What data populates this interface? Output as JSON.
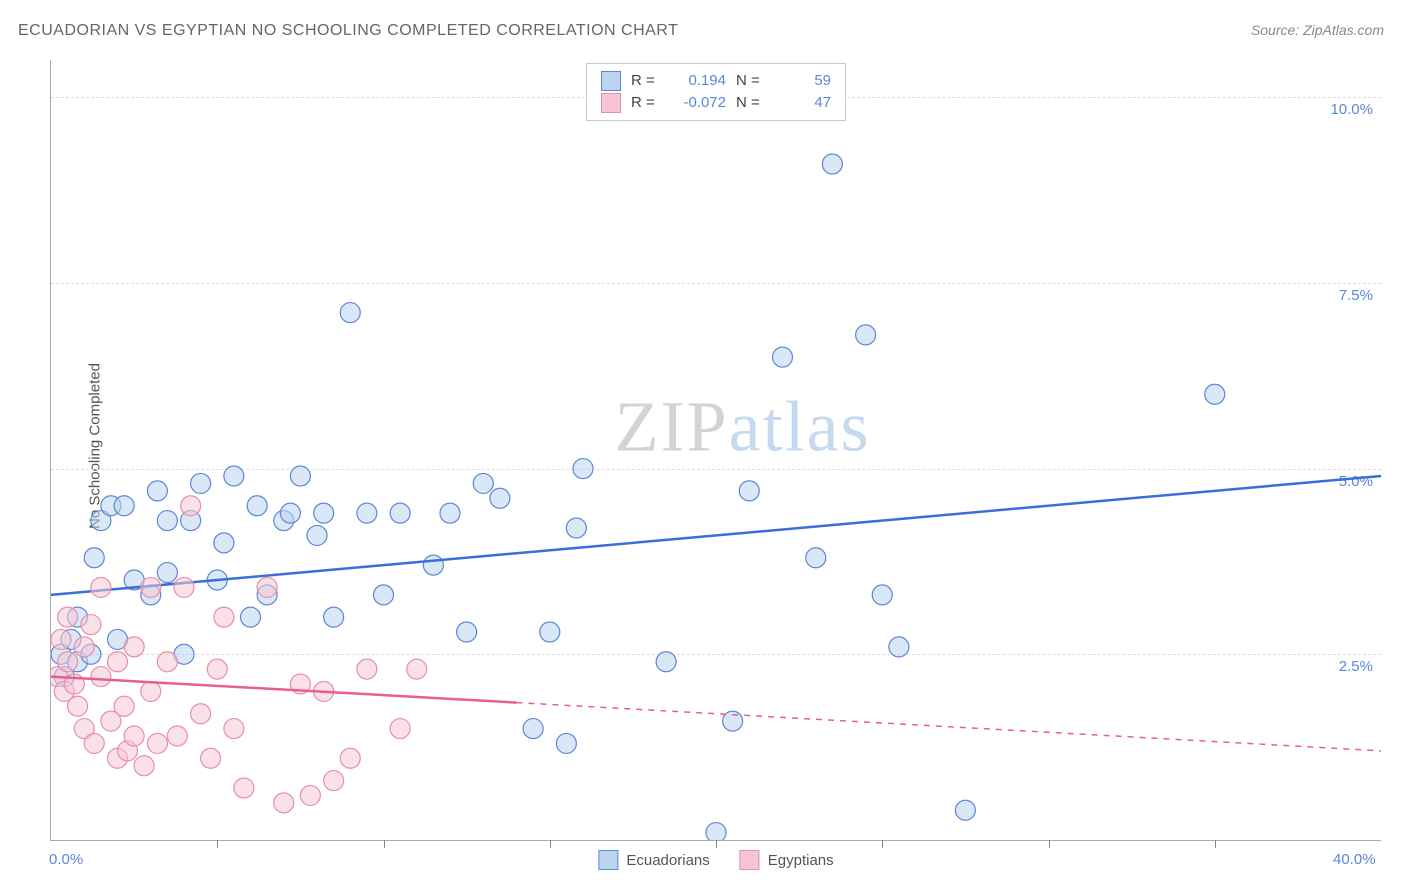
{
  "title": "ECUADORIAN VS EGYPTIAN NO SCHOOLING COMPLETED CORRELATION CHART",
  "source_label": "Source:",
  "source_name": "ZipAtlas.com",
  "y_axis_label": "No Schooling Completed",
  "watermark_lead": "ZIP",
  "watermark_rest": "atlas",
  "chart": {
    "type": "scatter",
    "xlim": [
      0,
      40
    ],
    "ylim": [
      0,
      10.5
    ],
    "x_ticks_minor": [
      5,
      10,
      15,
      20,
      25,
      30,
      35
    ],
    "y_gridlines": [
      2.5,
      5.0,
      7.5,
      10.0
    ],
    "x_axis_labels": [
      {
        "val": 0.0,
        "text": "0.0%"
      },
      {
        "val": 40.0,
        "text": "40.0%"
      }
    ],
    "y_axis_labels": [
      {
        "val": 2.5,
        "text": "2.5%"
      },
      {
        "val": 5.0,
        "text": "5.0%"
      },
      {
        "val": 7.5,
        "text": "7.5%"
      },
      {
        "val": 10.0,
        "text": "10.0%"
      }
    ],
    "marker_radius": 10,
    "marker_opacity": 0.55,
    "series": [
      {
        "name": "Ecuadorians",
        "fill": "#bcd4ef",
        "stroke": "#5b87d6",
        "line_color": "#3a6fd8",
        "r_value": "0.194",
        "n_value": "59",
        "trend": {
          "x1": 0,
          "y1": 3.3,
          "x2": 40,
          "y2": 4.9,
          "dashed_from": 40
        },
        "points": [
          [
            0.3,
            2.5
          ],
          [
            0.4,
            2.2
          ],
          [
            0.6,
            2.7
          ],
          [
            0.8,
            2.4
          ],
          [
            0.8,
            3.0
          ],
          [
            1.2,
            2.5
          ],
          [
            1.3,
            3.8
          ],
          [
            1.5,
            4.3
          ],
          [
            1.8,
            4.5
          ],
          [
            2.0,
            2.7
          ],
          [
            2.2,
            4.5
          ],
          [
            2.5,
            3.5
          ],
          [
            3.0,
            3.3
          ],
          [
            3.2,
            4.7
          ],
          [
            3.5,
            3.6
          ],
          [
            3.5,
            4.3
          ],
          [
            4.0,
            2.5
          ],
          [
            4.2,
            4.3
          ],
          [
            4.5,
            4.8
          ],
          [
            5.0,
            3.5
          ],
          [
            5.2,
            4.0
          ],
          [
            5.5,
            4.9
          ],
          [
            6.0,
            3.0
          ],
          [
            6.2,
            4.5
          ],
          [
            6.5,
            3.3
          ],
          [
            7.0,
            4.3
          ],
          [
            7.2,
            4.4
          ],
          [
            7.5,
            4.9
          ],
          [
            8.0,
            4.1
          ],
          [
            8.2,
            4.4
          ],
          [
            8.5,
            3.0
          ],
          [
            9.0,
            7.1
          ],
          [
            9.5,
            4.4
          ],
          [
            10.0,
            3.3
          ],
          [
            10.5,
            4.4
          ],
          [
            11.5,
            3.7
          ],
          [
            12.0,
            4.4
          ],
          [
            12.5,
            2.8
          ],
          [
            13.0,
            4.8
          ],
          [
            13.5,
            4.6
          ],
          [
            14.5,
            1.5
          ],
          [
            15.0,
            2.8
          ],
          [
            15.5,
            1.3
          ],
          [
            15.8,
            4.2
          ],
          [
            16.0,
            5.0
          ],
          [
            18.5,
            2.4
          ],
          [
            20.0,
            0.1
          ],
          [
            20.5,
            1.6
          ],
          [
            21.0,
            4.7
          ],
          [
            22.0,
            6.5
          ],
          [
            23.0,
            3.8
          ],
          [
            23.5,
            9.1
          ],
          [
            24.5,
            6.8
          ],
          [
            25.0,
            3.3
          ],
          [
            25.5,
            2.6
          ],
          [
            27.5,
            0.4
          ],
          [
            35.0,
            6.0
          ]
        ]
      },
      {
        "name": "Egyptians",
        "fill": "#f6c6d4",
        "stroke": "#e68fa8",
        "line_color": "#e85f8a",
        "r_value": "-0.072",
        "n_value": "47",
        "trend": {
          "x1": 0,
          "y1": 2.2,
          "x2": 40,
          "y2": 1.2,
          "dashed_from": 14
        },
        "points": [
          [
            0.2,
            2.2
          ],
          [
            0.3,
            2.7
          ],
          [
            0.4,
            2.0
          ],
          [
            0.5,
            2.4
          ],
          [
            0.5,
            3.0
          ],
          [
            0.7,
            2.1
          ],
          [
            0.8,
            1.8
          ],
          [
            1.0,
            2.6
          ],
          [
            1.0,
            1.5
          ],
          [
            1.2,
            2.9
          ],
          [
            1.3,
            1.3
          ],
          [
            1.5,
            2.2
          ],
          [
            1.5,
            3.4
          ],
          [
            1.8,
            1.6
          ],
          [
            2.0,
            1.1
          ],
          [
            2.0,
            2.4
          ],
          [
            2.2,
            1.8
          ],
          [
            2.3,
            1.2
          ],
          [
            2.5,
            2.6
          ],
          [
            2.5,
            1.4
          ],
          [
            2.8,
            1.0
          ],
          [
            3.0,
            2.0
          ],
          [
            3.0,
            3.4
          ],
          [
            3.2,
            1.3
          ],
          [
            3.5,
            2.4
          ],
          [
            3.8,
            1.4
          ],
          [
            4.0,
            3.4
          ],
          [
            4.2,
            4.5
          ],
          [
            4.5,
            1.7
          ],
          [
            4.8,
            1.1
          ],
          [
            5.0,
            2.3
          ],
          [
            5.2,
            3.0
          ],
          [
            5.5,
            1.5
          ],
          [
            5.8,
            0.7
          ],
          [
            6.5,
            3.4
          ],
          [
            7.0,
            0.5
          ],
          [
            7.5,
            2.1
          ],
          [
            7.8,
            0.6
          ],
          [
            8.2,
            2.0
          ],
          [
            8.5,
            0.8
          ],
          [
            9.0,
            1.1
          ],
          [
            9.5,
            2.3
          ],
          [
            10.5,
            1.5
          ],
          [
            11.0,
            2.3
          ]
        ]
      }
    ]
  },
  "legend_bottom": [
    {
      "label": "Ecuadorians",
      "fill": "#bcd4ef",
      "stroke": "#5b87d6"
    },
    {
      "label": "Egyptians",
      "fill": "#f6c6d4",
      "stroke": "#e68fa8"
    }
  ],
  "colors": {
    "axis_text": "#5b87d6",
    "grid": "#dddddd",
    "border": "#aaaaaa"
  }
}
